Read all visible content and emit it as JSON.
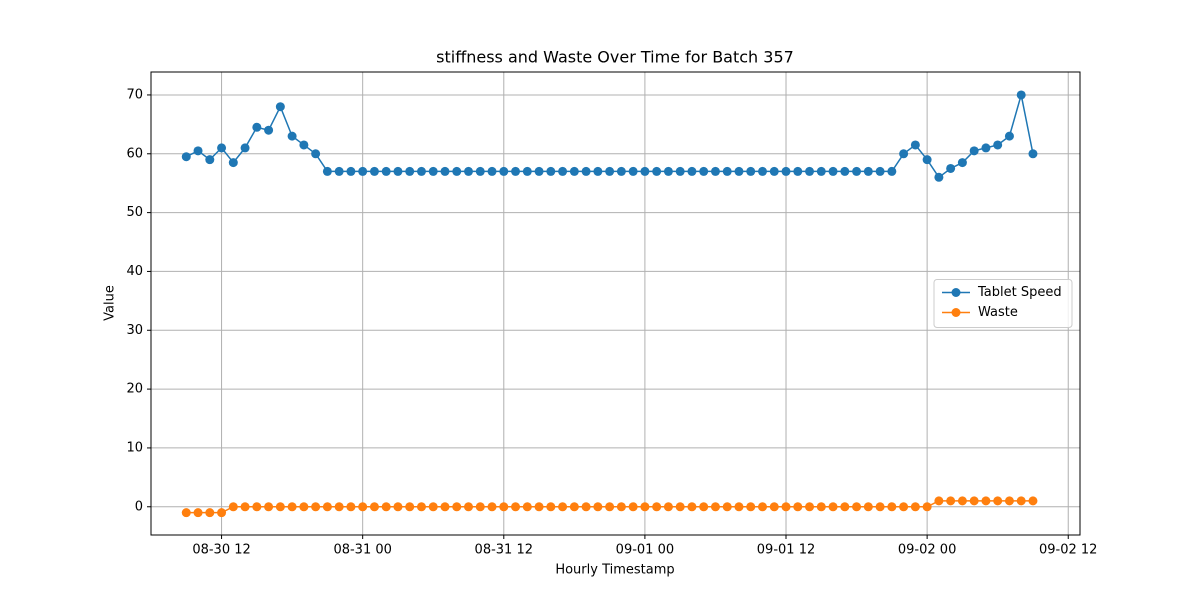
{
  "chart_data": {
    "type": "line",
    "title": "stiffness and Waste Over Time for Batch 357",
    "x_label": "Hourly Timestamp",
    "y_label": "Value",
    "x": [
      "08-30 09",
      "08-30 10",
      "08-30 11",
      "08-30 12",
      "08-30 13",
      "08-30 14",
      "08-30 15",
      "08-30 16",
      "08-30 17",
      "08-30 18",
      "08-30 19",
      "08-30 20",
      "08-30 21",
      "08-30 22",
      "08-30 23",
      "08-31 00",
      "08-31 01",
      "08-31 02",
      "08-31 03",
      "08-31 04",
      "08-31 05",
      "08-31 06",
      "08-31 07",
      "08-31 08",
      "08-31 09",
      "08-31 10",
      "08-31 11",
      "08-31 12",
      "08-31 13",
      "08-31 14",
      "08-31 15",
      "08-31 16",
      "08-31 17",
      "08-31 18",
      "08-31 19",
      "08-31 20",
      "08-31 21",
      "08-31 22",
      "08-31 23",
      "09-01 00",
      "09-01 01",
      "09-01 02",
      "09-01 03",
      "09-01 04",
      "09-01 05",
      "09-01 06",
      "09-01 07",
      "09-01 08",
      "09-01 09",
      "09-01 10",
      "09-01 11",
      "09-01 12",
      "09-01 13",
      "09-01 14",
      "09-01 15",
      "09-01 16",
      "09-01 17",
      "09-01 18",
      "09-01 19",
      "09-01 20",
      "09-01 21",
      "09-01 22",
      "09-01 23",
      "09-02 00",
      "09-02 01",
      "09-02 02",
      "09-02 03",
      "09-02 04",
      "09-02 05",
      "09-02 06",
      "09-02 07",
      "09-02 08",
      "09-02 09"
    ],
    "series": [
      {
        "name": "Tablet Speed",
        "color": "#1f77b4",
        "values": [
          59.5,
          60.5,
          59,
          61,
          58.5,
          61,
          64.5,
          64,
          68,
          63,
          61.5,
          60,
          57,
          57,
          57,
          57,
          57,
          57,
          57,
          57,
          57,
          57,
          57,
          57,
          57,
          57,
          57,
          57,
          57,
          57,
          57,
          57,
          57,
          57,
          57,
          57,
          57,
          57,
          57,
          57,
          57,
          57,
          57,
          57,
          57,
          57,
          57,
          57,
          57,
          57,
          57,
          57,
          57,
          57,
          57,
          57,
          57,
          57,
          57,
          57,
          57,
          60,
          61.5,
          59,
          56,
          57.5,
          58.5,
          60.5,
          61,
          61.5,
          63,
          70,
          60
        ]
      },
      {
        "name": "Waste",
        "color": "#ff7f0e",
        "values": [
          -1,
          -1,
          -1,
          -1,
          0,
          0,
          0,
          0,
          0,
          0,
          0,
          0,
          0,
          0,
          0,
          0,
          0,
          0,
          0,
          0,
          0,
          0,
          0,
          0,
          0,
          0,
          0,
          0,
          0,
          0,
          0,
          0,
          0,
          0,
          0,
          0,
          0,
          0,
          0,
          0,
          0,
          0,
          0,
          0,
          0,
          0,
          0,
          0,
          0,
          0,
          0,
          0,
          0,
          0,
          0,
          0,
          0,
          0,
          0,
          0,
          0,
          0,
          0,
          0,
          1,
          1,
          1,
          1,
          1,
          1,
          1,
          1,
          1
        ]
      }
    ],
    "xlim": [
      "08-30 06",
      "09-02 13"
    ],
    "xticks": [
      "08-30 12",
      "08-31 00",
      "08-31 12",
      "09-01 00",
      "09-01 12",
      "09-02 00",
      "09-02 12"
    ],
    "ylim": [
      -4.8,
      73.9
    ],
    "yticks": [
      0,
      10,
      20,
      30,
      40,
      50,
      60,
      70
    ],
    "grid": true,
    "legend": "center right"
  }
}
